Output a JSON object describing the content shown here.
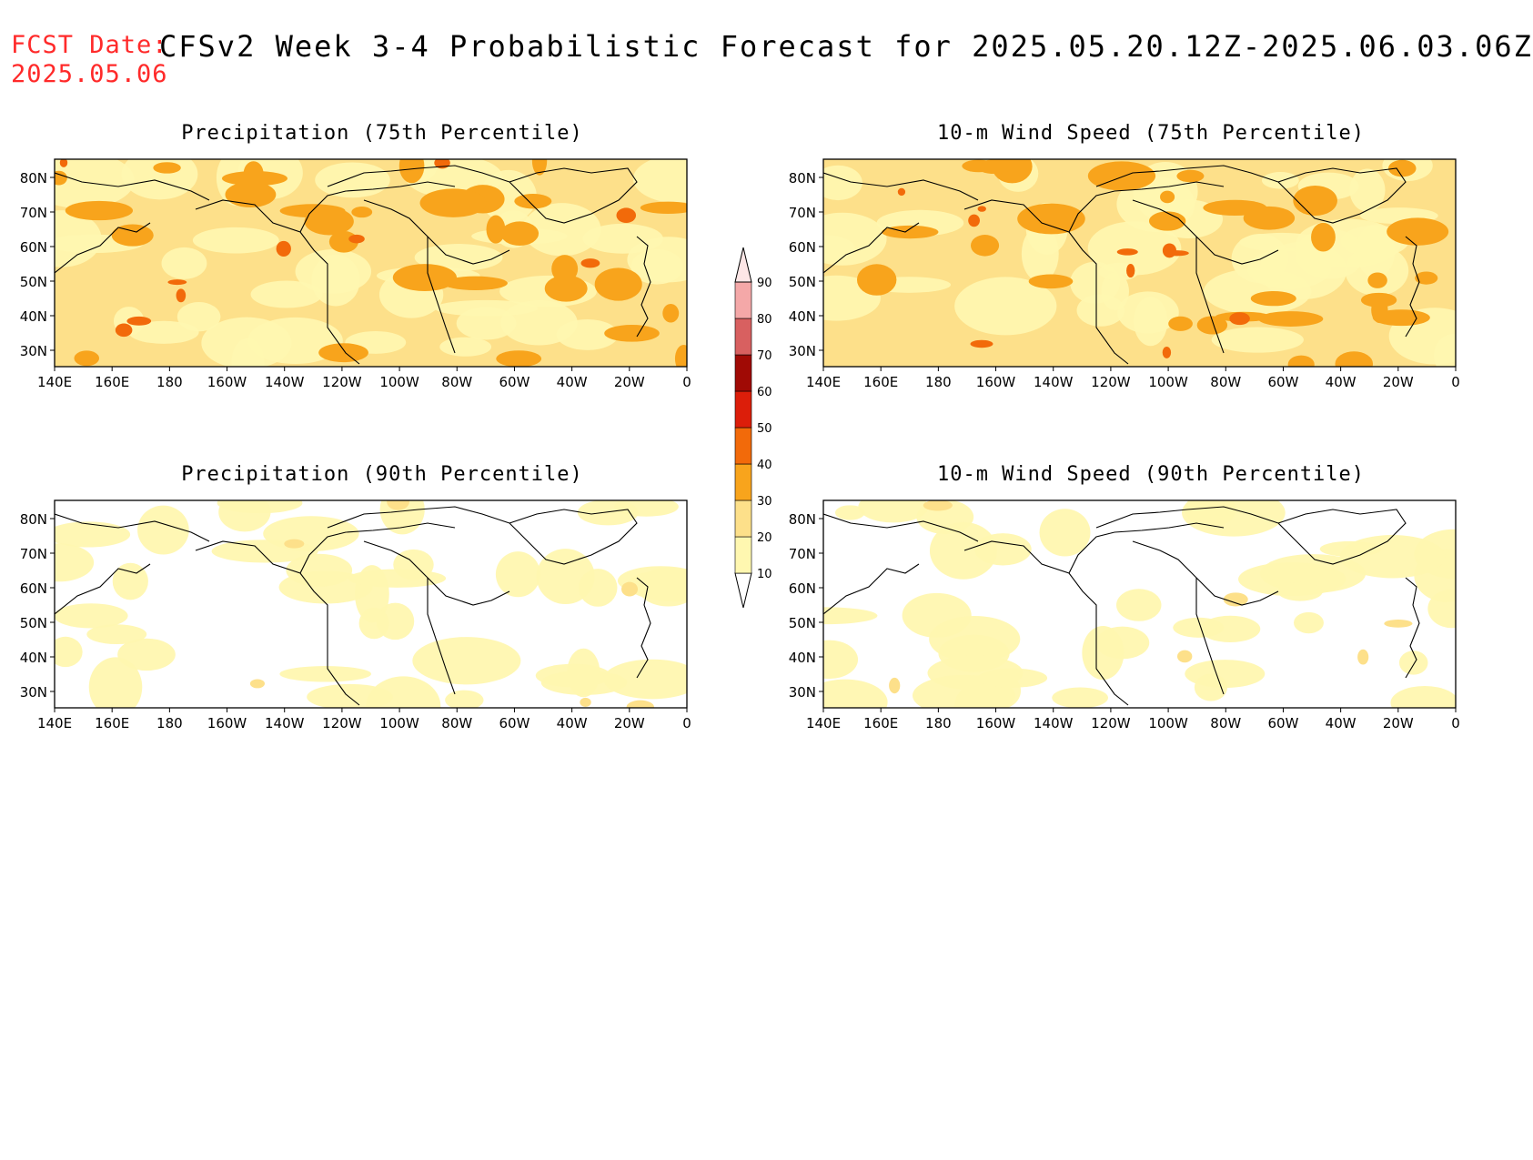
{
  "header": {
    "fcst_label": "FCST Date:",
    "fcst_date": "2025.05.06",
    "title": "CFSv2 Week 3-4 Probabilistic Forecast for 2025.05.20.12Z-2025.06.03.06Z"
  },
  "panels": [
    {
      "id": "precip75",
      "title": "Precipitation (75th Percentile)"
    },
    {
      "id": "wind75",
      "title": "10-m Wind Speed (75th Percentile)"
    },
    {
      "id": "precip90",
      "title": "Precipitation (90th Percentile)"
    },
    {
      "id": "wind90",
      "title": "10-m Wind Speed (90th Percentile)"
    }
  ],
  "axes": {
    "lat_labels": [
      "80N",
      "70N",
      "60N",
      "50N",
      "40N",
      "30N"
    ],
    "lon_labels": [
      "140E",
      "160E",
      "180",
      "160W",
      "140W",
      "120W",
      "100W",
      "80W",
      "60W",
      "40W",
      "20W",
      "0"
    ]
  },
  "colorbar": {
    "levels": [
      "10",
      "20",
      "30",
      "40",
      "50",
      "60",
      "70",
      "80",
      "90"
    ],
    "colors": [
      "#fff7b0",
      "#fde08a",
      "#f8a41c",
      "#f26a0a",
      "#dc1e0a",
      "#a00a05",
      "#d86060",
      "#f4a8a8",
      "#fde6e6"
    ]
  }
}
